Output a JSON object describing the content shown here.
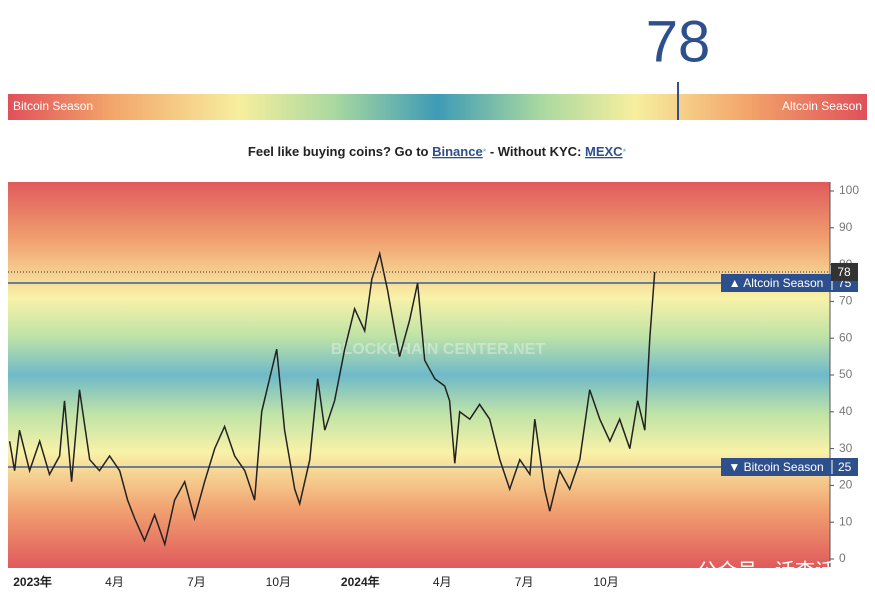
{
  "gauge": {
    "value": 78,
    "range": [
      0,
      100
    ],
    "left_label": "Bitcoin Season",
    "right_label": "Altcoin Season"
  },
  "promo": {
    "text1": "Feel like buying coins? Go to ",
    "link1": "Binance",
    "star1": "*",
    "text2": " - Without KYC: ",
    "link2": "MEXC",
    "star2": "*"
  },
  "chart_data": {
    "type": "line",
    "color": "#222222",
    "x": [
      -0.84,
      -0.66,
      -0.48,
      -0.11,
      0.26,
      0.62,
      0.99,
      1.17,
      1.43,
      1.72,
      2.09,
      2.45,
      2.82,
      3.19,
      3.48,
      3.74,
      4.1,
      4.47,
      4.84,
      5.2,
      5.57,
      5.93,
      6.3,
      6.67,
      7.03,
      7.4,
      7.77,
      8.13,
      8.39,
      8.68,
      8.94,
      9.23,
      9.6,
      9.78,
      10.15,
      10.44,
      10.7,
      11.06,
      11.43,
      11.79,
      12.16,
      12.42,
      12.71,
      13.0,
      13.26,
      13.44,
      13.81,
      14.1,
      14.36,
      14.73,
      15.09,
      15.27,
      15.46,
      15.64,
      16.01,
      16.37,
      16.74,
      17.11,
      17.47,
      17.84,
      18.21,
      18.39,
      18.75,
      18.94,
      19.3,
      19.67,
      20.04,
      20.4,
      20.77,
      21.14,
      21.5,
      21.87,
      22.16,
      22.42,
      22.6,
      22.78
    ],
    "values": [
      32,
      24,
      35,
      24,
      32,
      23,
      28,
      43,
      21,
      46,
      27,
      24,
      28,
      24,
      16,
      11,
      5,
      12,
      4,
      16,
      21,
      11,
      21,
      30,
      36,
      28,
      24,
      16,
      40,
      49,
      57,
      35,
      19,
      15,
      27,
      49,
      35,
      43,
      57,
      68,
      62,
      76,
      83,
      73,
      62,
      55,
      65,
      75,
      54,
      49,
      47,
      43,
      26,
      40,
      38,
      42,
      38,
      27,
      19,
      27,
      23,
      38,
      19,
      13,
      24,
      19,
      27,
      46,
      38,
      32,
      38,
      30,
      43,
      35,
      60,
      78
    ],
    "xlim": [
      -0.9,
      29.2
    ],
    "xticks": [
      {
        "value": 0,
        "label": "2023年"
      },
      {
        "value": 3,
        "label": "4月"
      },
      {
        "value": 6,
        "label": "7月"
      },
      {
        "value": 9,
        "label": "10月"
      },
      {
        "value": 12,
        "label": "2024年"
      },
      {
        "value": 15,
        "label": "4月"
      },
      {
        "value": 18,
        "label": "7月"
      },
      {
        "value": 21,
        "label": "10月"
      }
    ],
    "ylim": [
      0,
      100
    ],
    "yticks": [
      0,
      10,
      20,
      30,
      40,
      50,
      60,
      70,
      80,
      90,
      100
    ],
    "thresholds": [
      {
        "label": "▲ Altcoin Season",
        "value": 75
      },
      {
        "label": "▼ Bitcoin Season",
        "value": 25
      }
    ],
    "watermark": "BLOCKCHAIN CENTER.NET"
  },
  "footer_watermark": "公众号 · 话李话外"
}
